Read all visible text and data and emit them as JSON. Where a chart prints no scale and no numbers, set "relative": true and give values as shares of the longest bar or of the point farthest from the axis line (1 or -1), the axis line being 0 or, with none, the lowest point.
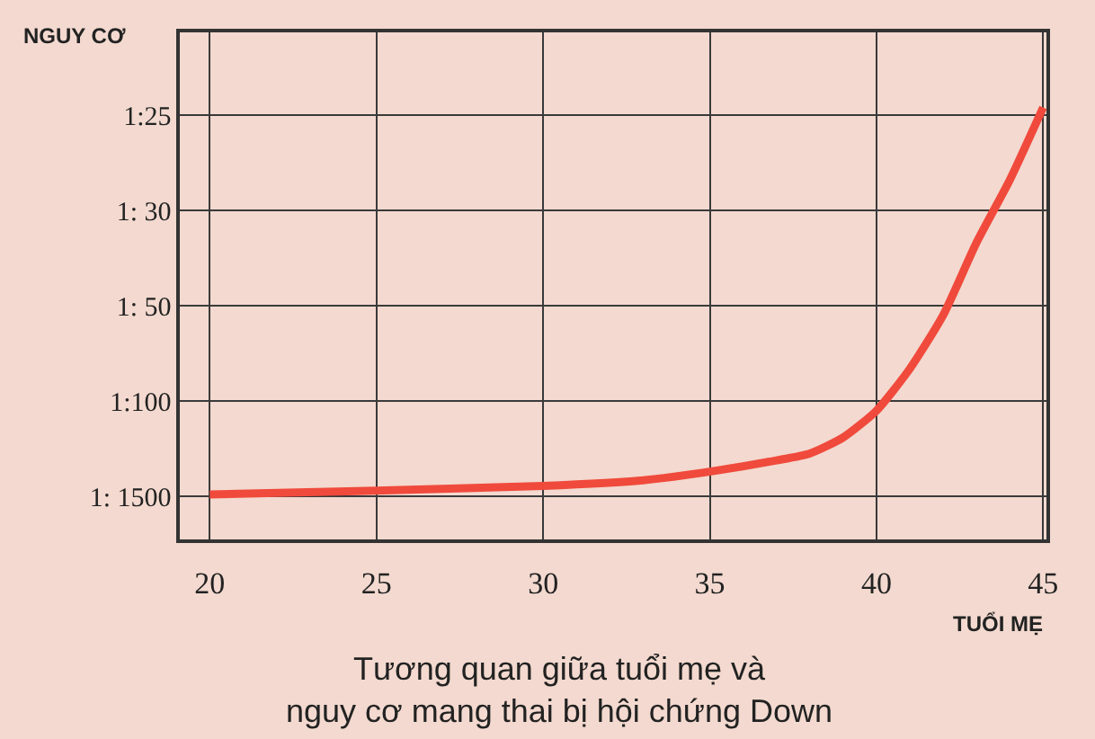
{
  "chart_data": {
    "type": "line",
    "title": "Tương quan giữa tuổi mẹ và\nnguy cơ mang thai bị hội chứng Down",
    "xlabel": "TUỔI MẸ",
    "ylabel": "NGUY CƠ",
    "annotations": [
      "1: 1500",
      "1:100",
      "1: 50",
      "1: 30",
      "1:25"
    ],
    "x": [
      20,
      25,
      30,
      33,
      35,
      37,
      38,
      39,
      40,
      41,
      42,
      43,
      44,
      45
    ],
    "series": [
      {
        "color": "#f04a3c",
        "values": [
          0.104,
          0.113,
          0.124,
          0.137,
          0.157,
          0.183,
          0.199,
          0.236,
          0.298,
          0.395,
          0.519,
          0.687,
          0.832,
          1.0
        ]
      }
    ],
    "relative": true,
    "xlim": [
      19.1,
      45.1
    ],
    "xticks": [
      20,
      25,
      30,
      35,
      40,
      45
    ],
    "grid": true,
    "marker": "none",
    "line_style": "solid"
  }
}
